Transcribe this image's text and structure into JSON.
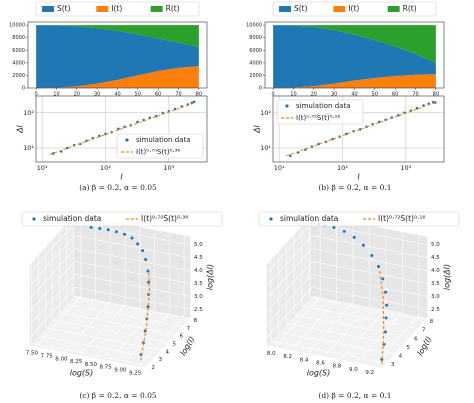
{
  "chart_data": [
    {
      "type": "area",
      "x": [
        0,
        10,
        20,
        30,
        40,
        50,
        60,
        70,
        80
      ],
      "xlim": [
        -4,
        84
      ],
      "xticks": [
        0,
        10,
        20,
        30,
        40,
        50,
        60,
        70,
        80
      ],
      "ylim": [
        0,
        10500
      ],
      "yticks": [
        0,
        2000,
        4000,
        6000,
        8000,
        10000
      ],
      "stack_order": [
        1,
        0,
        2
      ],
      "series": [
        {
          "name": "S(t)",
          "color": "#1f77b4",
          "values": [
            9990,
            9900,
            9550,
            8800,
            7800,
            6500,
            5200,
            4000,
            3000
          ]
        },
        {
          "name": "I(t)",
          "color": "#ff7f0e",
          "values": [
            10,
            60,
            250,
            700,
            1300,
            2000,
            2700,
            3200,
            3500
          ]
        },
        {
          "name": "R(t)",
          "color": "#2ca02c",
          "values": [
            0,
            40,
            200,
            500,
            900,
            1500,
            2100,
            2800,
            3500
          ]
        }
      ]
    },
    {
      "type": "logscatter",
      "xlabel": "I",
      "ylabel": "ΔI",
      "caption": "(a) β = 0.2, α = 0.05",
      "grid": true,
      "legend": "lower right",
      "xlim": [
        8,
        4000
      ],
      "xticks": [
        {
          "value": 10,
          "label": "10¹"
        },
        {
          "value": 100,
          "label": "10²"
        },
        {
          "value": 1000,
          "label": "10³"
        }
      ],
      "ylim": [
        4,
        300
      ],
      "yticks": [
        {
          "value": 10,
          "label": "10¹"
        },
        {
          "value": 100,
          "label": "10²"
        }
      ],
      "series": [
        {
          "name": "simulation data",
          "color": "#1f77b4",
          "marker": "o",
          "x": [
            15,
            20,
            25,
            32,
            40,
            50,
            63,
            80,
            100,
            125,
            160,
            200,
            250,
            320,
            400,
            500,
            630,
            800,
            1000,
            1250,
            1600,
            2000,
            2300,
            2500
          ],
          "values": [
            7,
            8,
            10,
            12,
            13,
            16,
            19,
            22,
            25,
            28,
            35,
            40,
            44,
            55,
            62,
            72,
            80,
            98,
            110,
            128,
            150,
            172,
            190,
            205
          ]
        },
        {
          "name": "I(t)⁰·⁷⁰S(t)⁰·³⁶",
          "color": "#ff7f0e",
          "linestyle": "--",
          "x": [
            13,
            2600
          ],
          "values": [
            6.5,
            195
          ]
        }
      ]
    },
    {
      "type": "area",
      "x": [
        0,
        10,
        20,
        30,
        40,
        50,
        60,
        70,
        80
      ],
      "xlim": [
        -4,
        84
      ],
      "xticks": [
        0,
        10,
        20,
        30,
        40,
        50,
        60,
        70,
        80
      ],
      "ylim": [
        0,
        10500
      ],
      "yticks": [
        0,
        2000,
        4000,
        6000,
        8000,
        10000
      ],
      "stack_order": [
        1,
        0,
        2
      ],
      "series": [
        {
          "name": "S(t)",
          "color": "#1f77b4",
          "values": [
            9990,
            9880,
            9400,
            8500,
            7300,
            6000,
            4700,
            3300,
            1800
          ]
        },
        {
          "name": "I(t)",
          "color": "#ff7f0e",
          "values": [
            10,
            70,
            300,
            700,
            1200,
            1600,
            1900,
            2100,
            2200
          ]
        },
        {
          "name": "R(t)",
          "color": "#2ca02c",
          "values": [
            0,
            50,
            300,
            800,
            1500,
            2400,
            3400,
            4600,
            6000
          ]
        }
      ]
    },
    {
      "type": "logscatter",
      "xlabel": "I",
      "ylabel": "ΔI",
      "caption": "(b) β = 0.2, α = 0.1",
      "grid": true,
      "legend": "upper left",
      "xlim": [
        8,
        4000
      ],
      "xticks": [
        {
          "value": 10,
          "label": "10¹"
        },
        {
          "value": 100,
          "label": "10²"
        },
        {
          "value": 1000,
          "label": "10³"
        }
      ],
      "ylim": [
        4,
        300
      ],
      "yticks": [
        {
          "value": 10,
          "label": "10¹"
        },
        {
          "value": 100,
          "label": "10²"
        }
      ],
      "series": [
        {
          "name": "simulation data",
          "color": "#1f77b4",
          "marker": "o",
          "x": [
            15,
            20,
            26,
            33,
            42,
            55,
            70,
            90,
            115,
            150,
            190,
            240,
            300,
            380,
            480,
            600,
            760,
            950,
            1200,
            1500,
            1900,
            2300,
            2700,
            2900
          ],
          "values": [
            6,
            7.5,
            9,
            11,
            13,
            15,
            18,
            21,
            25,
            30,
            34,
            40,
            47,
            55,
            63,
            73,
            85,
            100,
            115,
            135,
            160,
            180,
            200,
            195
          ]
        },
        {
          "name": "I(t)⁰·⁷²S(t)⁰·¹⁶",
          "color": "#ff7f0e",
          "linestyle": "--",
          "x": [
            13,
            3000
          ],
          "values": [
            6,
            200
          ]
        }
      ]
    },
    {
      "type": "scatter3d",
      "xlabel": "log(S)",
      "ylabel": "log(I)",
      "zlabel": "log(ΔI)",
      "caption": "(c) β = 0.2, α = 0.05",
      "xlim": [
        7.4,
        9.35
      ],
      "xticks": [
        {
          "value": 7.5,
          "label": "7.50"
        },
        {
          "value": 7.75,
          "label": "7.75"
        },
        {
          "value": 8,
          "label": "8.00"
        },
        {
          "value": 8.25,
          "label": "8.25"
        },
        {
          "value": 8.5,
          "label": "8.50"
        },
        {
          "value": 8.75,
          "label": "8.75"
        },
        {
          "value": 9,
          "label": "9.00"
        },
        {
          "value": 9.25,
          "label": "9.25"
        }
      ],
      "ylim": [
        1.8,
        8.2
      ],
      "yticks": [
        2,
        3,
        4,
        5,
        6,
        7,
        8
      ],
      "zlim": [
        2.2,
        5.3
      ],
      "zticks": [
        2.5,
        {
          "value": 3,
          "label": "3.0"
        },
        3.5,
        {
          "value": 4,
          "label": "4.0"
        },
        4.5,
        {
          "value": 5,
          "label": "5.0"
        }
      ],
      "series": [
        {
          "name": "simulation data",
          "color": "#1f77b4",
          "marker": "o",
          "x": [
            9.2,
            9.18,
            9.15,
            9.12,
            9.08,
            9.03,
            8.97,
            8.9,
            8.8,
            8.7,
            8.58,
            8.45,
            8.3,
            8.15,
            8.0,
            7.85,
            7.7
          ],
          "y": [
            2.5,
            3.0,
            3.5,
            4.0,
            4.5,
            5.0,
            5.5,
            6.0,
            6.5,
            6.9,
            7.2,
            7.5,
            7.7,
            7.8,
            7.9,
            7.95,
            7.98
          ],
          "values": [
            2.4,
            2.7,
            3.0,
            3.3,
            3.6,
            3.9,
            4.2,
            4.45,
            4.7,
            4.88,
            5.0,
            5.08,
            5.1,
            5.1,
            5.08,
            5.05,
            5.02
          ]
        },
        {
          "name": "I(t)⁰·⁷⁰S(t)⁰·³⁶",
          "color": "#ff7f0e",
          "linestyle": "--",
          "x": [
            9.22,
            9.14,
            9.02,
            8.9
          ],
          "y": [
            2.3,
            3.8,
            5.2,
            6.1
          ],
          "values": [
            2.25,
            3.15,
            3.95,
            4.45
          ]
        }
      ]
    },
    {
      "type": "scatter3d",
      "xlabel": "log(S)",
      "ylabel": "log(I)",
      "zlabel": "log(ΔI)",
      "caption": "(d) β = 0.2, α = 0.1",
      "xlim": [
        7.9,
        9.3
      ],
      "xticks": [
        {
          "value": 8,
          "label": "8.0"
        },
        8.2,
        8.4,
        8.6,
        8.8,
        {
          "value": 9,
          "label": "9.0"
        },
        9.2
      ],
      "ylim": [
        2.5,
        8.3
      ],
      "yticks": [
        3,
        4,
        5,
        6,
        7,
        8
      ],
      "zlim": [
        2.2,
        5.3
      ],
      "zticks": [
        2.5,
        {
          "value": 3,
          "label": "3.0"
        },
        3.5,
        {
          "value": 4,
          "label": "4.0"
        },
        4.5,
        {
          "value": 5,
          "label": "5.0"
        }
      ],
      "series": [
        {
          "name": "simulation data",
          "color": "#1f77b4",
          "marker": "o",
          "x": [
            9.25,
            9.23,
            9.2,
            9.16,
            9.12,
            9.06,
            8.98,
            8.88,
            8.76,
            8.62,
            8.48,
            8.34,
            8.2,
            8.08,
            8.0
          ],
          "y": [
            3.0,
            3.5,
            4.0,
            4.5,
            5.0,
            5.5,
            6.0,
            6.5,
            6.9,
            7.3,
            7.6,
            7.8,
            7.95,
            8.05,
            8.1
          ],
          "values": [
            2.3,
            2.7,
            3.0,
            3.35,
            3.65,
            3.95,
            4.25,
            4.5,
            4.72,
            4.9,
            5.02,
            5.1,
            5.12,
            5.1,
            5.08
          ]
        },
        {
          "name": "I(t)⁰·⁷²S(t)⁰·¹⁶",
          "color": "#ff7f0e",
          "linestyle": "--",
          "x": [
            9.27,
            9.18,
            9.05,
            8.9
          ],
          "y": [
            2.8,
            4.0,
            5.3,
            6.4
          ],
          "values": [
            2.2,
            2.95,
            3.8,
            4.45
          ]
        }
      ]
    }
  ]
}
